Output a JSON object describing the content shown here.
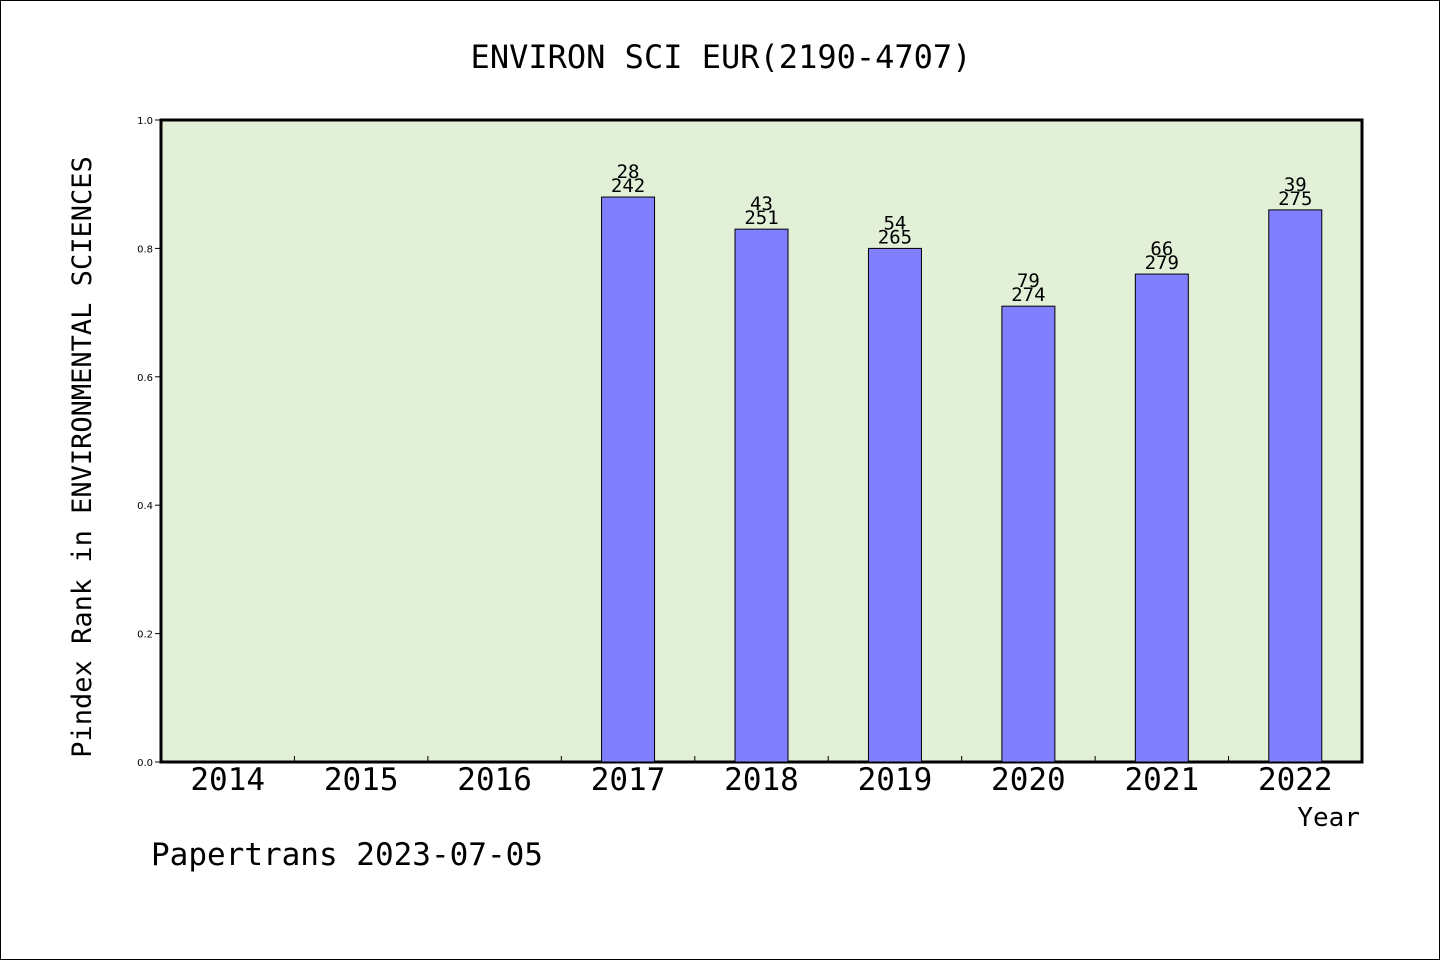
{
  "chart_data": {
    "type": "bar",
    "title": "ENVIRON SCI EUR(2190-4707)",
    "xlabel": "Year",
    "ylabel": "Pindex Rank in ENVIRONMENTAL SCIENCES",
    "categories": [
      "2014",
      "2015",
      "2016",
      "2017",
      "2018",
      "2019",
      "2020",
      "2021",
      "2022"
    ],
    "values": [
      null,
      null,
      null,
      0.88,
      0.83,
      0.8,
      0.71,
      0.76,
      0.86
    ],
    "bar_labels_top": [
      "",
      "",
      "",
      "28",
      "43",
      "54",
      "79",
      "66",
      "39"
    ],
    "bar_labels_bottom": [
      "",
      "",
      "",
      "242",
      "251",
      "265",
      "274",
      "279",
      "275"
    ],
    "ylim": [
      0,
      1
    ],
    "yticks": [
      "0.0",
      "0.2",
      "0.4",
      "0.6",
      "0.8",
      "1.0"
    ],
    "grid": false,
    "plot_background": "#e2f0d8",
    "bar_color": "#8080ff"
  },
  "footer_text": "Papertrans 2023-07-05"
}
